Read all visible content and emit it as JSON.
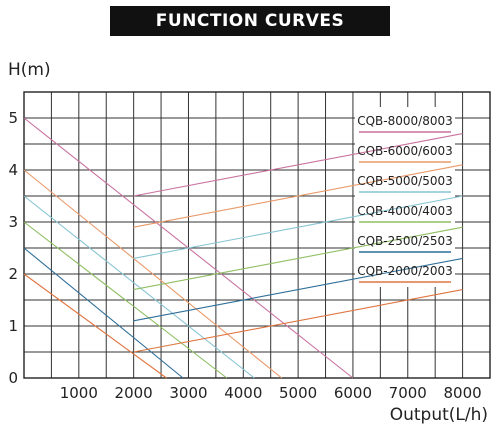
{
  "title": "FUNCTION CURVES",
  "chart_data": {
    "type": "line",
    "title": "FUNCTION CURVES",
    "ylabel": "H(m)",
    "xlabel": "Output(L/h)",
    "xlim": [
      0,
      8500
    ],
    "ylim": [
      0,
      5.5
    ],
    "xticks": [
      1000,
      2000,
      3000,
      4000,
      5000,
      6000,
      7000,
      8000
    ],
    "yticks": [
      0,
      1,
      2,
      3,
      4,
      5
    ],
    "grid": true,
    "legend_position": "right",
    "series": [
      {
        "name": "CQB-8000/8003",
        "color": "#c9729f",
        "x": [
          0,
          6000
        ],
        "y": [
          5.0,
          0.0
        ]
      },
      {
        "name": "CQB-6000/6003",
        "color": "#e99a6a",
        "x": [
          0,
          4700
        ],
        "y": [
          4.0,
          0.0
        ]
      },
      {
        "name": "CQB-5000/5003",
        "color": "#86c4d2",
        "x": [
          0,
          4200
        ],
        "y": [
          3.5,
          0.0
        ]
      },
      {
        "name": "CQB-4000/4003",
        "color": "#8fbf63",
        "x": [
          0,
          3700
        ],
        "y": [
          3.0,
          0.0
        ]
      },
      {
        "name": "CQB-2500/2503",
        "color": "#2f6f9a",
        "x": [
          0,
          2900
        ],
        "y": [
          2.5,
          0.0
        ]
      },
      {
        "name": "CQB-2000/2003",
        "color": "#e07540",
        "x": [
          0,
          2600
        ],
        "y": [
          2.0,
          0.0
        ]
      }
    ],
    "operating_lines": [
      {
        "series": "CQB-8000/8003",
        "x": [
          2000,
          8000
        ],
        "y": [
          3.5,
          4.7
        ]
      },
      {
        "series": "CQB-6000/6003",
        "x": [
          2000,
          8000
        ],
        "y": [
          2.9,
          4.1
        ]
      },
      {
        "series": "CQB-5000/5003",
        "x": [
          2000,
          8000
        ],
        "y": [
          2.3,
          3.5
        ]
      },
      {
        "series": "CQB-4000/4003",
        "x": [
          2000,
          8000
        ],
        "y": [
          1.7,
          2.9
        ]
      },
      {
        "series": "CQB-2500/2503",
        "x": [
          2000,
          8000
        ],
        "y": [
          1.1,
          2.3
        ]
      },
      {
        "series": "CQB-2000/2003",
        "x": [
          2000,
          8000
        ],
        "y": [
          0.5,
          1.7
        ]
      }
    ]
  }
}
